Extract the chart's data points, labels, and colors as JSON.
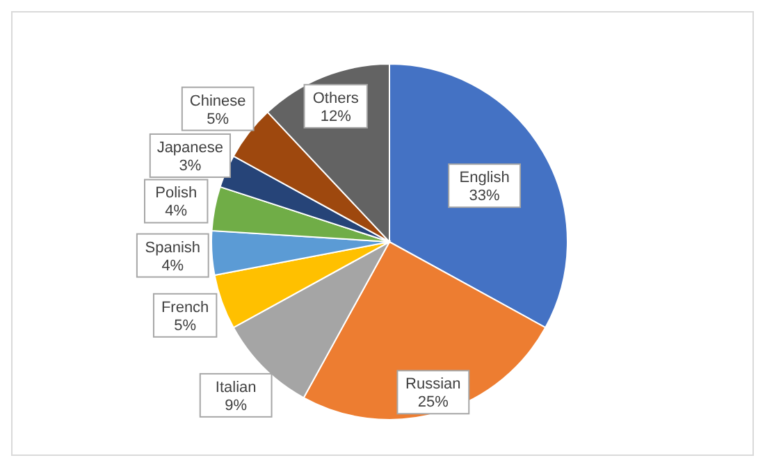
{
  "chart_data": {
    "type": "pie",
    "categories": [
      "English",
      "Russian",
      "Italian",
      "French",
      "Spanish",
      "Polish",
      "Japanese",
      "Chinese",
      "Others"
    ],
    "values": [
      33,
      25,
      9,
      5,
      4,
      4,
      3,
      5,
      12
    ],
    "colors": [
      "#4472c4",
      "#ed7d31",
      "#a5a5a5",
      "#ffc000",
      "#5b9bd5",
      "#70ad47",
      "#264478",
      "#9e480e",
      "#636363"
    ],
    "value_labels": [
      "33%",
      "25%",
      "9%",
      "5%",
      "4%",
      "4%",
      "3%",
      "5%",
      "12%"
    ],
    "legend": false
  }
}
